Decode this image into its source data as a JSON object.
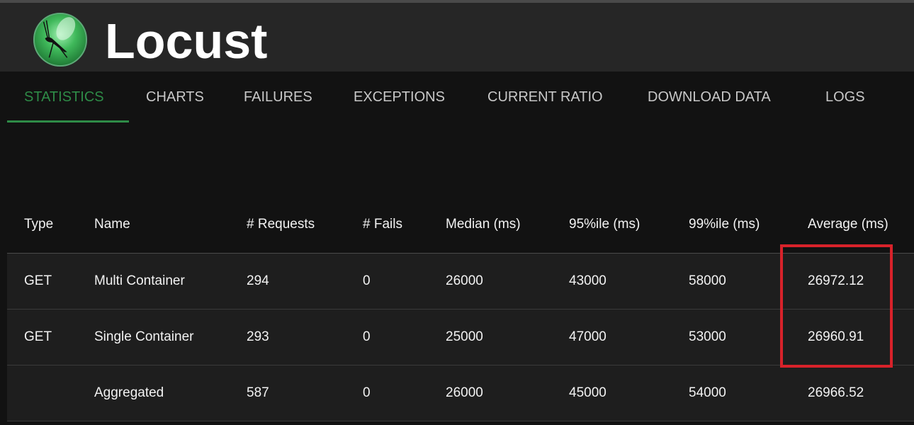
{
  "app": {
    "title": "Locust"
  },
  "nav": {
    "tabs": [
      {
        "label": "STATISTICS",
        "active": true
      },
      {
        "label": "CHARTS"
      },
      {
        "label": "FAILURES"
      },
      {
        "label": "EXCEPTIONS"
      },
      {
        "label": "CURRENT RATIO"
      },
      {
        "label": "DOWNLOAD DATA"
      },
      {
        "label": "LOGS"
      }
    ]
  },
  "table": {
    "headers": [
      "Type",
      "Name",
      "# Requests",
      "# Fails",
      "Median (ms)",
      "95%ile (ms)",
      "99%ile (ms)",
      "Average (ms)"
    ],
    "rows": [
      [
        "GET",
        "Multi Container",
        "294",
        "0",
        "26000",
        "43000",
        "58000",
        "26972.12"
      ],
      [
        "GET",
        "Single Container",
        "293",
        "0",
        "25000",
        "47000",
        "53000",
        "26960.91"
      ],
      [
        "",
        "Aggregated",
        "587",
        "0",
        "26000",
        "45000",
        "54000",
        "26966.52"
      ]
    ]
  },
  "colors": {
    "accent": "#2e8b47",
    "highlight": "#d8222a",
    "header_bg": "#262626",
    "page_bg": "#121212"
  }
}
